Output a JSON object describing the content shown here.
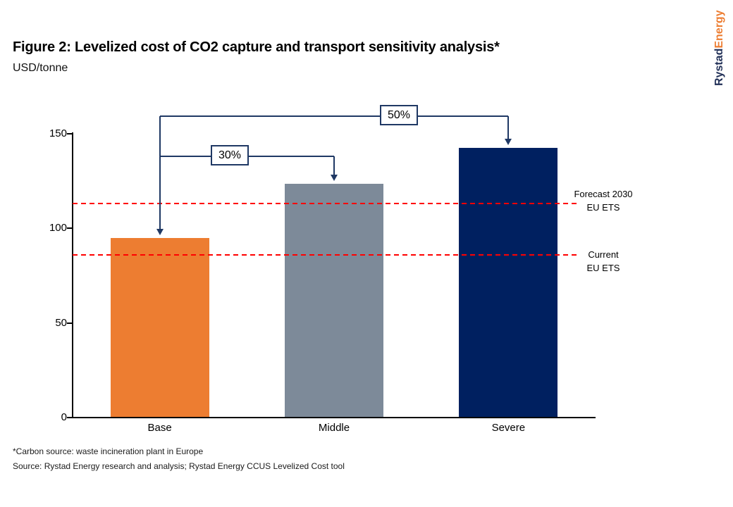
{
  "logo": {
    "part1": "Rystad",
    "part2": "Energy"
  },
  "header": {
    "title": "Figure 2: Levelized cost of CO2 capture and transport sensitivity analysis*",
    "subtitle": "USD/tonne"
  },
  "chart_data": {
    "type": "bar",
    "title": "Figure 2: Levelized cost of CO2 capture and transport sensitivity analysis*",
    "ylabel": "USD/tonne",
    "xlabel": "",
    "categories": [
      "Base",
      "Middle",
      "Severe"
    ],
    "values": [
      95,
      123.5,
      142.5
    ],
    "bar_colors": [
      "#ED7D31",
      "#7D8A99",
      "#002060"
    ],
    "ylim": [
      0,
      150
    ],
    "yticks": [
      0,
      50,
      100,
      150
    ],
    "grid": false,
    "legend": "none",
    "reference_lines": [
      {
        "value": 113,
        "label_lines": [
          "Forecast 2030",
          "EU ETS"
        ],
        "color": "#FF0000",
        "style": "dashed"
      },
      {
        "value": 86,
        "label_lines": [
          "Current",
          "EU ETS"
        ],
        "color": "#FF0000",
        "style": "dashed"
      }
    ],
    "annotations": [
      {
        "label": "30%",
        "from": "Base",
        "to": "Middle"
      },
      {
        "label": "50%",
        "from": "Base",
        "to": "Severe"
      }
    ],
    "annotation_color": "#1F3864"
  },
  "footer": {
    "note1": "*Carbon source: waste incineration plant in Europe",
    "note2": "Source: Rystad Energy research and analysis; Rystad Energy CCUS Levelized Cost tool"
  }
}
